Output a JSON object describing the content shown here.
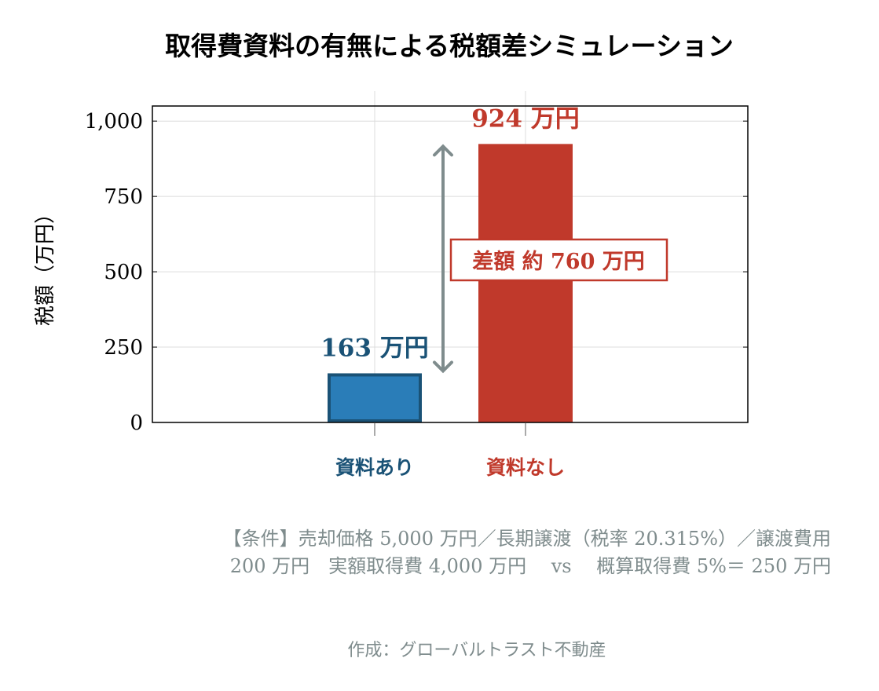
{
  "chart_data": {
    "type": "bar",
    "title": "取得費資料の有無による税額差シミュレーション",
    "ylabel": "税額（万円）",
    "xlabel": "",
    "categories": [
      "資料あり",
      "資料なし"
    ],
    "values": [
      163,
      924
    ],
    "value_labels": [
      "163 万円",
      "924 万円"
    ],
    "colors": [
      "#2a7db8",
      "#c0392b"
    ],
    "edge_colors": [
      "#1a5276",
      "#c0392b"
    ],
    "ylim": [
      0,
      1050
    ],
    "yticks": [
      0,
      250,
      500,
      750,
      1000
    ],
    "ytick_labels": [
      "0",
      "250",
      "500",
      "750",
      "1,000"
    ],
    "grid": true,
    "annotation": {
      "text": "差額 約 760 万円",
      "from": 163,
      "to": 924,
      "arrow_color": "#7f8c8d",
      "color": "#c0392b"
    }
  },
  "notes": {
    "conditions_line1": "【条件】売却価格 5,000 万円／長期譲渡（税率 20.315%）／譲渡費用",
    "conditions_line2": "200 万円　実額取得費 4,000 万円　 vs 　概算取得費 5%＝ 250 万円",
    "credit": "作成：グローバルトラスト不動産",
    "text_color": "#7f8c8d"
  }
}
